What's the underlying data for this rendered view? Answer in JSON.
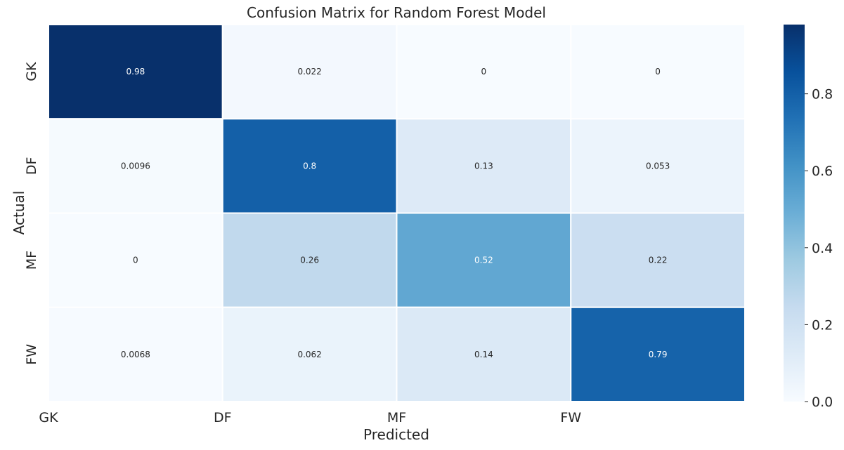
{
  "chart_data": {
    "type": "heatmap",
    "title": "Confusion Matrix for Random Forest Model",
    "xlabel": "Predicted",
    "ylabel": "Actual",
    "x_categories": [
      "GK",
      "DF",
      "MF",
      "FW"
    ],
    "y_categories": [
      "GK",
      "DF",
      "MF",
      "FW"
    ],
    "values": [
      [
        0.98,
        0.022,
        0,
        0
      ],
      [
        0.0096,
        0.8,
        0.13,
        0.053
      ],
      [
        0,
        0.26,
        0.52,
        0.22
      ],
      [
        0.0068,
        0.062,
        0.14,
        0.79
      ]
    ],
    "cell_labels": [
      [
        "0.98",
        "0.022",
        "0",
        "0"
      ],
      [
        "0.0096",
        "0.8",
        "0.13",
        "0.053"
      ],
      [
        "0",
        "0.26",
        "0.52",
        "0.22"
      ],
      [
        "0.0068",
        "0.062",
        "0.14",
        "0.79"
      ]
    ],
    "colormap": "Blues",
    "colorbar": {
      "range": [
        0,
        0.98
      ],
      "ticks": [
        0.0,
        0.2,
        0.4,
        0.6,
        0.8
      ],
      "tick_labels": [
        "0.0",
        "0.2",
        "0.4",
        "0.6",
        "0.8"
      ]
    }
  }
}
